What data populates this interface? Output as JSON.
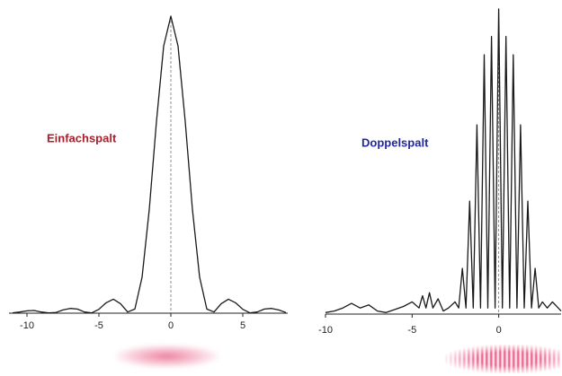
{
  "chart_data": [
    {
      "type": "line",
      "title": "Einfachspalt",
      "title_color": "#a8202c",
      "color": "#1a1a1a",
      "x": [
        -11,
        -10.5,
        -10,
        -9.5,
        -9,
        -8.5,
        -8,
        -7.5,
        -7,
        -6.5,
        -6,
        -5.5,
        -5,
        -4.5,
        -4,
        -3.5,
        -3,
        -2.5,
        -2,
        -1.5,
        -1,
        -0.5,
        0,
        0.5,
        1,
        1.5,
        2,
        2.5,
        3,
        3.5,
        4,
        4.5,
        5,
        5.5,
        6,
        6.5,
        7,
        7.5,
        8
      ],
      "values": [
        0.001,
        0.004,
        0.008,
        0.009,
        0.004,
        0.001,
        0.002,
        0.011,
        0.016,
        0.014,
        0.004,
        0.001,
        0.013,
        0.035,
        0.047,
        0.032,
        0.004,
        0.014,
        0.121,
        0.349,
        0.645,
        0.899,
        1,
        0.899,
        0.645,
        0.349,
        0.121,
        0.014,
        0.004,
        0.032,
        0.047,
        0.035,
        0.013,
        0.001,
        0.004,
        0.014,
        0.016,
        0.011,
        0.002
      ],
      "xlim": [
        -11.25,
        8.125
      ],
      "ylim": [
        0,
        1
      ],
      "xticks": [
        -10,
        -5,
        0,
        5
      ]
    },
    {
      "type": "line",
      "title": "Doppelspalt",
      "title_color": "#22289a",
      "color": "#1a1a1a",
      "x": [
        -10,
        -9.5,
        -9,
        -8.5,
        -8,
        -7.5,
        -7,
        -6.5,
        -6,
        -5.5,
        -5,
        -4.6,
        -4.4,
        -4.2,
        -4,
        -3.8,
        -3.5,
        -3.2,
        -2.9,
        -2.52,
        -2.31,
        -2.1,
        -1.89,
        -1.68,
        -1.47,
        -1.26,
        -1.05,
        -0.84,
        -0.63,
        -0.42,
        -0.21,
        0,
        0.21,
        0.42,
        0.63,
        0.84,
        1.05,
        1.26,
        1.47,
        1.68,
        1.89,
        2.1,
        2.31,
        2.52,
        2.8,
        3.1,
        3.6
      ],
      "values": [
        0.005,
        0.01,
        0.02,
        0.035,
        0.02,
        0.03,
        0.01,
        0.005,
        0.015,
        0.025,
        0.04,
        0.02,
        0.06,
        0.02,
        0.07,
        0.02,
        0.05,
        0.01,
        0.02,
        0.04,
        0.02,
        0.15,
        0.02,
        0.37,
        0.02,
        0.62,
        0.02,
        0.85,
        0.02,
        0.91,
        0.02,
        1,
        0.02,
        0.91,
        0.02,
        0.85,
        0.02,
        0.62,
        0.02,
        0.37,
        0.02,
        0.15,
        0.02,
        0.04,
        0.02,
        0.04,
        0.01
      ],
      "xlim": [
        -10,
        3.6
      ],
      "ylim": [
        0,
        1
      ],
      "xticks": [
        -10,
        -5,
        0
      ]
    }
  ]
}
